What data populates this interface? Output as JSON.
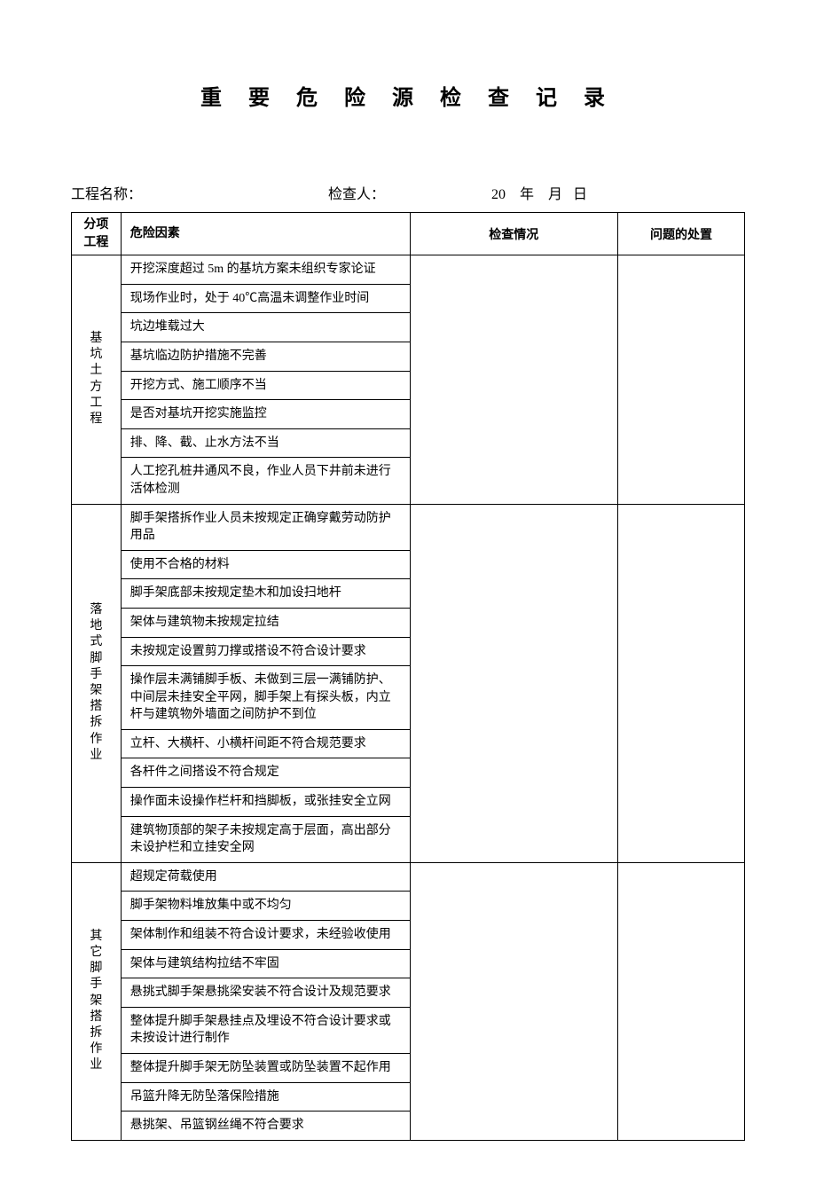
{
  "title": "重 要 危 险 源 检 查 记 录",
  "meta": {
    "project_label": "工程名称：",
    "inspector_label": "检查人：",
    "date_template": "20    年    月   日"
  },
  "columns": {
    "category": "分项\n工程",
    "hazard": "危险因素",
    "check": "检查情况",
    "action": "问题的处置"
  },
  "groups": [
    {
      "category": "基坑土方工程",
      "items": [
        "开挖深度超过 5m 的基坑方案未组织专家论证",
        "现场作业时，处于 40℃高温未调整作业时间",
        "坑边堆载过大",
        "基坑临边防护措施不完善",
        "开挖方式、施工顺序不当",
        "是否对基坑开挖实施监控",
        "排、降、截、止水方法不当",
        "人工挖孔桩井通风不良，作业人员下井前未进行活体检测"
      ]
    },
    {
      "category": "落地式脚手架搭拆作业",
      "items": [
        "脚手架搭拆作业人员未按规定正确穿戴劳动防护用品",
        "使用不合格的材料",
        "脚手架底部未按规定垫木和加设扫地杆",
        "架体与建筑物未按规定拉结",
        "未按规定设置剪刀撑或搭设不符合设计要求",
        "操作层未满铺脚手板、未做到三层一满铺防护、中间层未挂安全平网，脚手架上有探头板，内立杆与建筑物外墙面之间防护不到位",
        "立杆、大横杆、小横杆间距不符合规范要求",
        "各杆件之间搭设不符合规定",
        "操作面未设操作栏杆和挡脚板，或张挂安全立网",
        "建筑物顶部的架子未按规定高于层面，高出部分未设护栏和立挂安全网"
      ]
    },
    {
      "category": "其它脚手架搭拆作业",
      "items": [
        "超规定荷载使用",
        "脚手架物料堆放集中或不均匀",
        "架体制作和组装不符合设计要求，未经验收使用",
        "架体与建筑结构拉结不牢固",
        "悬挑式脚手架悬挑梁安装不符合设计及规范要求",
        "整体提升脚手架悬挂点及埋设不符合设计要求或未按设计进行制作",
        "整体提升脚手架无防坠装置或防坠装置不起作用",
        "吊篮升降无防坠落保险措施",
        "悬挑架、吊篮钢丝绳不符合要求"
      ]
    }
  ]
}
